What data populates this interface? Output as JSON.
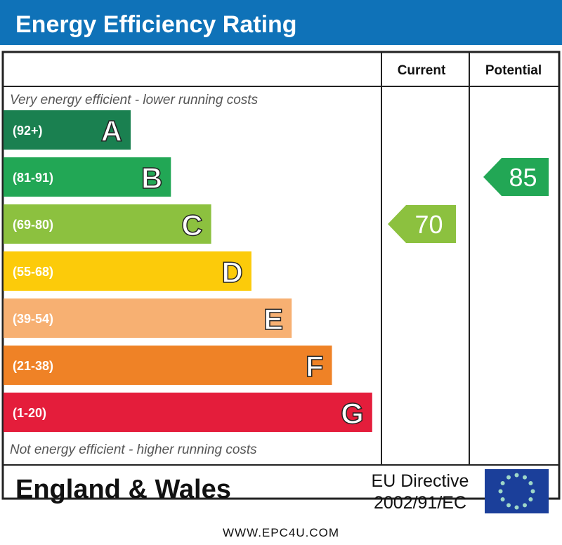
{
  "chart_data": {
    "type": "bar",
    "title": "Energy Efficiency Rating",
    "columns": [
      "Current",
      "Potential"
    ],
    "top_note": "Very energy efficient - lower running costs",
    "bottom_note": "Not energy efficient - higher running costs",
    "bands": [
      {
        "letter": "A",
        "range": "(92+)",
        "color": "#1a8050"
      },
      {
        "letter": "B",
        "range": "(81-91)",
        "color": "#22a755"
      },
      {
        "letter": "C",
        "range": "(69-80)",
        "color": "#8cc13f"
      },
      {
        "letter": "D",
        "range": "(55-68)",
        "color": "#fccb0a"
      },
      {
        "letter": "E",
        "range": "(39-54)",
        "color": "#f7b072"
      },
      {
        "letter": "F",
        "range": "(21-38)",
        "color": "#ef8226"
      },
      {
        "letter": "G",
        "range": "(1-20)",
        "color": "#e41d3b"
      }
    ],
    "current": {
      "value": "70",
      "band": "C",
      "color": "#8cc13f"
    },
    "potential": {
      "value": "85",
      "band": "B",
      "color": "#22a755"
    }
  },
  "footer": {
    "region": "England & Wales",
    "directive_line1": "EU Directive",
    "directive_line2": "2002/91/EC",
    "flag": "eu-flag-icon"
  },
  "website": "WWW.EPC4U.COM",
  "colors": {
    "header": "#0f72b8",
    "flag": "#1b3f9a",
    "star": "#9fd8c8"
  }
}
